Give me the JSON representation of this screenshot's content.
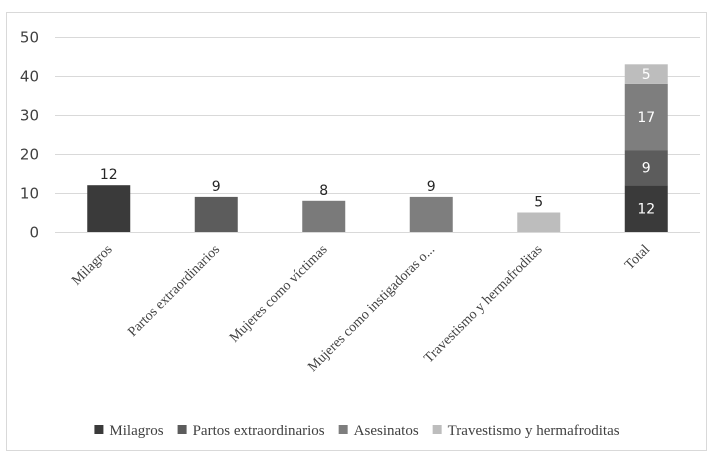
{
  "chart_data": {
    "type": "bar",
    "title": "",
    "xlabel": "",
    "ylabel": "",
    "ylim": [
      0,
      50
    ],
    "yticks": [
      0,
      10,
      20,
      30,
      40,
      50
    ],
    "grid": true,
    "legend_position": "bottom",
    "categories": [
      "Milagros",
      "Partos extraordinarios",
      "Mujeres como víctimas",
      "Mujeres como instigadoras o...",
      "Travestismo y hermafroditas",
      "Total"
    ],
    "bars": [
      {
        "category": "Milagros",
        "value": 12,
        "color": "#3a3a3a"
      },
      {
        "category": "Partos extraordinarios",
        "value": 9,
        "color": "#5c5c5c"
      },
      {
        "category": "Mujeres como víctimas",
        "value": 8,
        "color": "#7a7a7a"
      },
      {
        "category": "Mujeres como instigadoras o...",
        "value": 9,
        "color": "#7e7e7e"
      },
      {
        "category": "Travestismo y hermafroditas",
        "value": 5,
        "color": "#bdbdbd"
      }
    ],
    "stacked_total": {
      "category": "Total",
      "segments": [
        {
          "name": "Milagros",
          "value": 12,
          "color": "#3a3a3a"
        },
        {
          "name": "Partos extraordinarios",
          "value": 9,
          "color": "#5c5c5c"
        },
        {
          "name": "Asesinatos",
          "value": 17,
          "color": "#7e7e7e"
        },
        {
          "name": "Travestismo y hermafroditas",
          "value": 5,
          "color": "#bdbdbd"
        }
      ]
    },
    "legend": [
      {
        "name": "Milagros",
        "color": "#3a3a3a"
      },
      {
        "name": "Partos extraordinarios",
        "color": "#5c5c5c"
      },
      {
        "name": "Asesinatos",
        "color": "#7e7e7e"
      },
      {
        "name": "Travestismo y hermafroditas",
        "color": "#bdbdbd"
      }
    ]
  }
}
